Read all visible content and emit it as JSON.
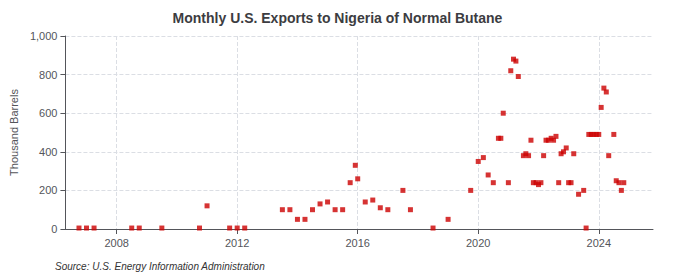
{
  "chart_data": {
    "type": "scatter",
    "title": "Monthly U.S. Exports to Nigeria of Normal Butane",
    "ylabel": "Thousand Barrels",
    "annotations": [
      "Source: U.S. Energy Information Administration"
    ],
    "color": "#cc0000",
    "marker": "square",
    "grid": true,
    "xlim": [
      2006.3,
      2025.8
    ],
    "xticks": [
      2008,
      2012,
      2016,
      2020,
      2024
    ],
    "ylim": [
      0,
      1000
    ],
    "yticks": [
      0,
      200,
      400,
      600,
      800,
      {
        "value": 1000,
        "label": "1,000"
      }
    ],
    "x": [
      2006.75,
      2007.0,
      2007.25,
      2008.5,
      2008.75,
      2009.5,
      2010.75,
      2011.0,
      2011.75,
      2012.0,
      2012.25,
      2013.5,
      2013.75,
      2014.0,
      2014.25,
      2014.5,
      2014.75,
      2015.0,
      2015.25,
      2015.5,
      2015.75,
      2015.92,
      2016.0,
      2016.25,
      2016.5,
      2016.75,
      2017.0,
      2017.5,
      2017.75,
      2018.5,
      2019.0,
      2019.75,
      2020.0,
      2020.17,
      2020.33,
      2020.5,
      2020.67,
      2020.75,
      2020.83,
      2021.0,
      2021.08,
      2021.17,
      2021.25,
      2021.33,
      2021.5,
      2021.58,
      2021.67,
      2021.75,
      2021.83,
      2021.92,
      2022.0,
      2022.08,
      2022.17,
      2022.25,
      2022.33,
      2022.42,
      2022.5,
      2022.58,
      2022.67,
      2022.75,
      2022.83,
      2022.92,
      2023.0,
      2023.08,
      2023.17,
      2023.33,
      2023.5,
      2023.58,
      2023.67,
      2023.75,
      2023.83,
      2023.92,
      2024.0,
      2024.08,
      2024.17,
      2024.25,
      2024.33,
      2024.5,
      2024.58,
      2024.67,
      2024.75,
      2024.83
    ],
    "values": [
      5,
      5,
      5,
      5,
      5,
      5,
      5,
      120,
      5,
      5,
      5,
      100,
      100,
      50,
      50,
      100,
      130,
      140,
      100,
      100,
      240,
      330,
      260,
      140,
      150,
      110,
      100,
      200,
      100,
      5,
      50,
      200,
      350,
      370,
      280,
      240,
      470,
      470,
      600,
      240,
      820,
      880,
      870,
      790,
      380,
      390,
      380,
      460,
      240,
      240,
      230,
      240,
      380,
      460,
      460,
      470,
      460,
      480,
      240,
      390,
      400,
      420,
      240,
      240,
      390,
      180,
      200,
      5,
      490,
      490,
      490,
      490,
      490,
      630,
      730,
      710,
      380,
      490,
      250,
      240,
      200,
      240
    ]
  }
}
